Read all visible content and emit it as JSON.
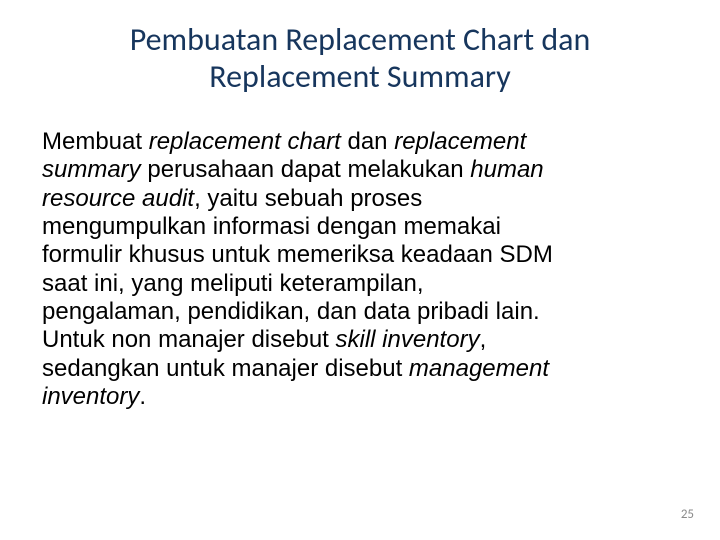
{
  "colors": {
    "title": "#17365d",
    "body": "#000000",
    "pagenum": "#8a8a8a",
    "background": "#ffffff"
  },
  "fontsizes_pt": {
    "title": 32,
    "body": 24,
    "pagenum": 13
  },
  "title": {
    "line1": "Pembuatan Replacement Chart dan",
    "line2": "Replacement Summary"
  },
  "body": {
    "t1": "Membuat ",
    "i1": "replacement chart",
    "t2": " dan ",
    "i2": "replacement summary",
    "t3": " perusahaan dapat melakukan ",
    "i3": "human resource audit",
    "t4": ", yaitu sebuah proses mengumpulkan informasi dengan memakai formulir khusus untuk memeriksa keadaan SDM saat ini, yang meliputi keterampilan, pengalaman, pendidikan, dan data pribadi lain. Untuk non manajer disebut ",
    "i4": "skill inventory",
    "t5": ", sedangkan untuk manajer disebut ",
    "i5": "management inventory",
    "t6": "."
  },
  "pagenum": "25"
}
